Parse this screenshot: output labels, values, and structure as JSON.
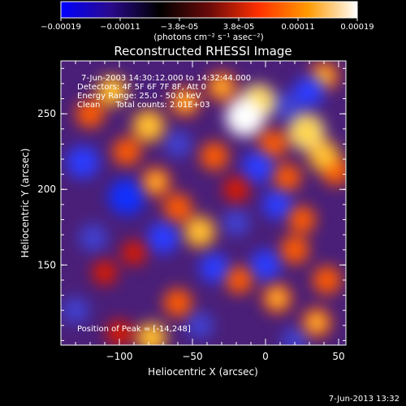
{
  "chart_data": {
    "type": "heatmap",
    "title": "Reconstructed RHESSI Image",
    "xlabel": "Heliocentric X (arcsec)",
    "ylabel": "Heliocentric Y (arcsec)",
    "xlim": [
      -140,
      55
    ],
    "ylim": [
      97,
      285
    ],
    "x_ticks": [
      -100,
      -50,
      0,
      50
    ],
    "y_ticks": [
      150,
      200,
      250
    ],
    "x_tick_labels": [
      "−100",
      "−50",
      "0",
      "50"
    ],
    "y_tick_labels": [
      "150",
      "200",
      "250"
    ],
    "colorbar": {
      "range": [
        -0.00019,
        0.00019
      ],
      "tick_labels": [
        "−0.00019",
        "−0.00011",
        "−3.8e-05",
        "3.8e-05",
        "0.00011",
        "0.00019"
      ],
      "unit_label": "(photons cm⁻² s⁻¹ asec⁻²)",
      "colormap": [
        "#0000ff",
        "#2a0a8c",
        "#000000",
        "#6a0a0a",
        "#ff3000",
        "#ff9a00",
        "#ffffff"
      ]
    },
    "annotations": [
      "7-Jun-2003 14:30:12.000 to 14:32:44.000",
      "Detectors: 4F 5F 6F 7F 8F, Att 0",
      "Energy Range: 25.0 - 50.0 keV",
      "Clean      Total counts: 2.01E+03",
      "Position of Peak = [-14,248]"
    ],
    "peak": {
      "x": -14,
      "y": 248,
      "value": 0.00019
    },
    "sources": [
      {
        "x": -14,
        "y": 248,
        "value": 1.0
      },
      {
        "x": -5,
        "y": 258,
        "value": 0.85
      },
      {
        "x": -30,
        "y": 268,
        "value": 0.6
      },
      {
        "x": -55,
        "y": 258,
        "value": 0.6
      },
      {
        "x": -80,
        "y": 242,
        "value": 0.75
      },
      {
        "x": -105,
        "y": 265,
        "value": 0.65
      },
      {
        "x": -120,
        "y": 250,
        "value": 0.55
      },
      {
        "x": -95,
        "y": 225,
        "value": 0.55
      },
      {
        "x": -75,
        "y": 205,
        "value": 0.6
      },
      {
        "x": -60,
        "y": 188,
        "value": 0.55
      },
      {
        "x": -45,
        "y": 172,
        "value": 0.7
      },
      {
        "x": -35,
        "y": 222,
        "value": 0.55
      },
      {
        "x": -20,
        "y": 200,
        "value": 0.45
      },
      {
        "x": 5,
        "y": 230,
        "value": 0.55
      },
      {
        "x": 15,
        "y": 208,
        "value": 0.5
      },
      {
        "x": 28,
        "y": 238,
        "value": 0.9
      },
      {
        "x": 40,
        "y": 222,
        "value": 0.7
      },
      {
        "x": 48,
        "y": 212,
        "value": 0.55
      },
      {
        "x": 40,
        "y": 275,
        "value": 0.6
      },
      {
        "x": 25,
        "y": 180,
        "value": 0.5
      },
      {
        "x": 20,
        "y": 160,
        "value": 0.55
      },
      {
        "x": 42,
        "y": 140,
        "value": 0.55
      },
      {
        "x": 8,
        "y": 128,
        "value": 0.6
      },
      {
        "x": 35,
        "y": 112,
        "value": 0.6
      },
      {
        "x": -18,
        "y": 140,
        "value": 0.5
      },
      {
        "x": -60,
        "y": 125,
        "value": 0.55
      },
      {
        "x": -78,
        "y": 102,
        "value": 0.65
      },
      {
        "x": -110,
        "y": 145,
        "value": 0.4
      },
      {
        "x": -100,
        "y": 105,
        "value": 0.45
      },
      {
        "x": -90,
        "y": 158,
        "value": 0.4
      },
      {
        "x": -125,
        "y": 218,
        "value": -0.75
      },
      {
        "x": -95,
        "y": 195,
        "value": -0.9
      },
      {
        "x": -118,
        "y": 168,
        "value": -0.55
      },
      {
        "x": -70,
        "y": 168,
        "value": -0.7
      },
      {
        "x": -60,
        "y": 230,
        "value": -0.5
      },
      {
        "x": -5,
        "y": 215,
        "value": -0.7
      },
      {
        "x": -20,
        "y": 178,
        "value": -0.5
      },
      {
        "x": 8,
        "y": 190,
        "value": -0.6
      },
      {
        "x": 0,
        "y": 150,
        "value": -0.65
      },
      {
        "x": 30,
        "y": 265,
        "value": -0.65
      },
      {
        "x": 15,
        "y": 255,
        "value": -0.55
      },
      {
        "x": -35,
        "y": 148,
        "value": -0.6
      },
      {
        "x": -45,
        "y": 110,
        "value": -0.5
      },
      {
        "x": 20,
        "y": 100,
        "value": -0.45
      },
      {
        "x": -130,
        "y": 120,
        "value": -0.5
      }
    ]
  },
  "footer": {
    "timestamp": "7-Jun-2013 13:32"
  }
}
